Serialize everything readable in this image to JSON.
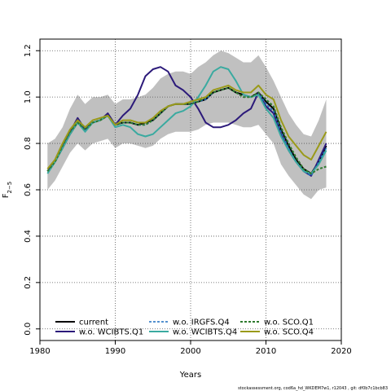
{
  "chart_data": {
    "type": "line",
    "xlabel": "Years",
    "ylabel_base": "F",
    "ylabel_sub": "2−5",
    "xlim": [
      1981,
      2018
    ],
    "ylim": [
      -0.05,
      1.25
    ],
    "x_ticks": [
      1980,
      1990,
      2000,
      2010,
      2020
    ],
    "y_ticks": [
      0.0,
      0.2,
      0.4,
      0.6,
      0.8,
      1.0,
      1.2
    ],
    "x_tick_labels": [
      "1980",
      "1990",
      "2000",
      "2010",
      "2020"
    ],
    "y_tick_labels": [
      "0.0",
      "0.2",
      "0.4",
      "0.6",
      "0.8",
      "1.0",
      "1.2"
    ],
    "grid": true,
    "legend_position": "bottom-left",
    "footer": "stockassessment.org, cod6a_hd_WKDEM7w1, r12043 , git: df0b7c1bcb83",
    "band": {
      "color": "#c0c0c0",
      "x": [
        1981,
        1982,
        1983,
        1984,
        1985,
        1986,
        1987,
        1988,
        1989,
        1990,
        1991,
        1992,
        1993,
        1994,
        1995,
        1996,
        1997,
        1998,
        1999,
        2000,
        2001,
        2002,
        2003,
        2004,
        2005,
        2006,
        2007,
        2008,
        2009,
        2010,
        2011,
        2012,
        2013,
        2014,
        2015,
        2016,
        2017,
        2018
      ],
      "upper": [
        0.8,
        0.82,
        0.87,
        0.95,
        1.01,
        0.97,
        1.0,
        1.0,
        1.01,
        0.97,
        0.99,
        0.99,
        1.0,
        1.01,
        1.04,
        1.08,
        1.1,
        1.11,
        1.11,
        1.1,
        1.13,
        1.15,
        1.18,
        1.2,
        1.19,
        1.17,
        1.15,
        1.15,
        1.18,
        1.13,
        1.07,
        1.0,
        0.93,
        0.88,
        0.84,
        0.83,
        0.9,
        0.99
      ],
      "lower": [
        0.6,
        0.64,
        0.7,
        0.76,
        0.8,
        0.77,
        0.8,
        0.81,
        0.82,
        0.78,
        0.8,
        0.8,
        0.79,
        0.78,
        0.79,
        0.82,
        0.84,
        0.85,
        0.85,
        0.85,
        0.86,
        0.88,
        0.89,
        0.89,
        0.89,
        0.88,
        0.87,
        0.87,
        0.88,
        0.84,
        0.8,
        0.71,
        0.66,
        0.62,
        0.58,
        0.56,
        0.6,
        0.61
      ]
    },
    "x": [
      1981,
      1982,
      1983,
      1984,
      1985,
      1986,
      1987,
      1988,
      1989,
      1990,
      1991,
      1992,
      1993,
      1994,
      1995,
      1996,
      1997,
      1998,
      1999,
      2000,
      2001,
      2002,
      2003,
      2004,
      2005,
      2006,
      2007,
      2008,
      2009,
      2010,
      2011,
      2012,
      2013,
      2014,
      2015,
      2016,
      2017,
      2018
    ],
    "series": [
      {
        "name": "current",
        "color": "#000000",
        "dash": "",
        "width": 2,
        "values": [
          0.68,
          0.72,
          0.78,
          0.84,
          0.89,
          0.86,
          0.89,
          0.9,
          0.92,
          0.88,
          0.89,
          0.89,
          0.88,
          0.89,
          0.9,
          0.93,
          0.96,
          0.97,
          0.97,
          0.97,
          0.98,
          0.99,
          1.02,
          1.03,
          1.04,
          1.02,
          1.01,
          1.0,
          1.02,
          0.98,
          0.95,
          0.86,
          0.79,
          0.73,
          0.69,
          0.67,
          0.72,
          0.79
        ]
      },
      {
        "name": "w.o. WCIBTS.Q1",
        "color": "#2c1a7a",
        "dash": "",
        "width": 2,
        "values": [
          0.68,
          0.72,
          0.79,
          0.85,
          0.91,
          0.86,
          0.89,
          0.9,
          0.93,
          0.88,
          0.92,
          0.95,
          1.01,
          1.09,
          1.12,
          1.13,
          1.11,
          1.05,
          1.03,
          1.0,
          0.95,
          0.89,
          0.87,
          0.87,
          0.88,
          0.9,
          0.93,
          0.95,
          1.02,
          0.96,
          0.93,
          0.84,
          0.77,
          0.72,
          0.68,
          0.66,
          0.73,
          0.8
        ]
      },
      {
        "name": "w.o. IRGFS.Q4",
        "color": "#1f6fbf",
        "dash": "3,2",
        "width": 1.6,
        "values": [
          0.68,
          0.72,
          0.79,
          0.85,
          0.9,
          0.86,
          0.89,
          0.9,
          0.92,
          0.88,
          0.89,
          0.89,
          0.88,
          0.88,
          0.9,
          0.93,
          0.96,
          0.97,
          0.97,
          0.97,
          0.98,
          0.99,
          1.02,
          1.03,
          1.04,
          1.02,
          1.0,
          1.0,
          1.02,
          0.97,
          0.94,
          0.85,
          0.78,
          0.72,
          0.68,
          0.66,
          0.72,
          0.78
        ]
      },
      {
        "name": "w.o. WCIBTS.Q4",
        "color": "#3aaaa0",
        "dash": "",
        "width": 2,
        "values": [
          0.67,
          0.72,
          0.78,
          0.84,
          0.89,
          0.85,
          0.89,
          0.9,
          0.92,
          0.87,
          0.88,
          0.87,
          0.84,
          0.83,
          0.84,
          0.87,
          0.9,
          0.93,
          0.94,
          0.96,
          1.0,
          1.05,
          1.11,
          1.13,
          1.12,
          1.07,
          1.01,
          1.0,
          1.01,
          0.95,
          0.91,
          0.83,
          0.77,
          0.72,
          0.68,
          0.67,
          0.71,
          0.77
        ]
      },
      {
        "name": "w.o. SCO.Q1",
        "color": "#2e7a2e",
        "dash": "3,2",
        "width": 2,
        "values": [
          0.68,
          0.72,
          0.79,
          0.85,
          0.89,
          0.86,
          0.89,
          0.9,
          0.92,
          0.88,
          0.89,
          0.89,
          0.88,
          0.88,
          0.9,
          0.93,
          0.96,
          0.97,
          0.97,
          0.97,
          0.98,
          1.0,
          1.02,
          1.03,
          1.04,
          1.02,
          1.0,
          1.0,
          1.02,
          0.99,
          0.96,
          0.87,
          0.8,
          0.74,
          0.69,
          0.67,
          0.69,
          0.7
        ]
      },
      {
        "name": "w.o. SCO.Q4",
        "color": "#9a9a1a",
        "dash": "",
        "width": 2,
        "values": [
          0.69,
          0.73,
          0.8,
          0.86,
          0.9,
          0.87,
          0.9,
          0.91,
          0.92,
          0.88,
          0.9,
          0.9,
          0.89,
          0.89,
          0.91,
          0.94,
          0.96,
          0.97,
          0.97,
          0.98,
          0.99,
          1.0,
          1.03,
          1.04,
          1.05,
          1.03,
          1.02,
          1.02,
          1.05,
          1.01,
          0.99,
          0.9,
          0.83,
          0.79,
          0.75,
          0.73,
          0.79,
          0.85
        ]
      }
    ]
  }
}
